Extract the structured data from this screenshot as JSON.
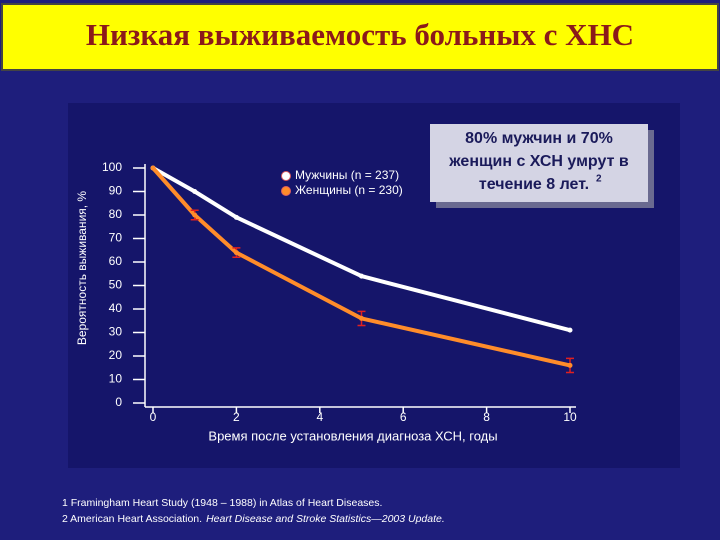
{
  "header": {
    "title": "Низкая выживаемость больных с ХНС"
  },
  "chart_data": {
    "type": "line",
    "x_label": "Время после установления диагноза ХСН, годы",
    "y_label": "Вероятность выживания, %",
    "x": [
      0,
      1,
      2,
      5,
      10
    ],
    "series": [
      {
        "name": "Мужчины (n = 237)",
        "color": "#ffffff",
        "values": [
          100,
          90,
          79,
          54,
          31
        ]
      },
      {
        "name": "Женщины (n = 230)",
        "color": "#ff8c2a",
        "values": [
          100,
          80,
          64,
          36,
          16
        ],
        "errors": [
          null,
          2,
          2,
          3,
          3
        ]
      }
    ],
    "xlim": [
      0,
      10
    ],
    "xticks": [
      0,
      2,
      4,
      6,
      8,
      10
    ],
    "ylim": [
      0,
      100
    ],
    "yticks": [
      0,
      10,
      20,
      30,
      40,
      50,
      60,
      70,
      80,
      90,
      100
    ],
    "annotation": {
      "lines": [
        "80% мужчин и 70%",
        "женщин с ХСН умрут в",
        "течение 8 лет."
      ],
      "superscript": "2"
    }
  },
  "footnotes": [
    {
      "text": "1 Framingham Heart Study (1948 – 1988) in Atlas of Heart Diseases."
    },
    {
      "text": "2 American Heart Association.",
      "italic": "Heart Disease and Stroke Statistics—2003 Update."
    }
  ]
}
